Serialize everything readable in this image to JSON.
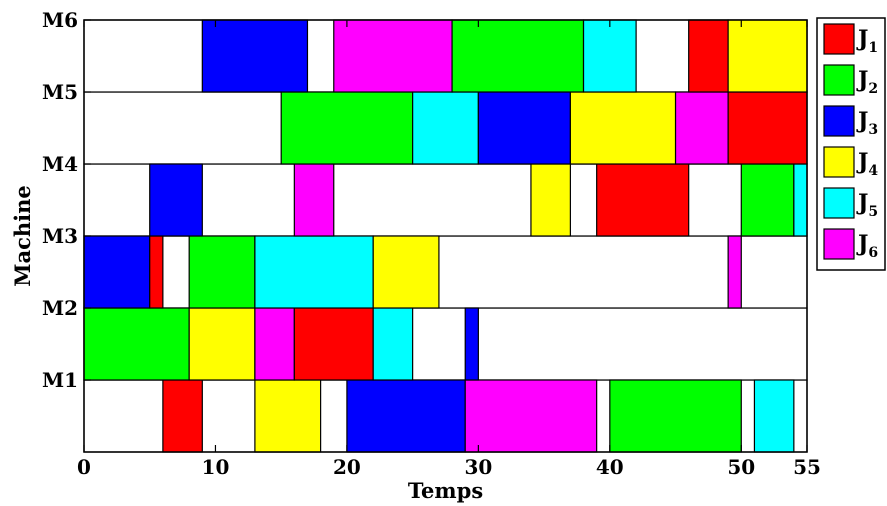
{
  "chart_data": {
    "type": "gantt",
    "xlabel": "Temps",
    "ylabel": "Machine",
    "xlim": [
      0,
      55
    ],
    "xticks": [
      0,
      10,
      20,
      30,
      40,
      50,
      55
    ],
    "machines": [
      "M1",
      "M2",
      "M3",
      "M4",
      "M5",
      "M6"
    ],
    "jobs": [
      {
        "id": "J1",
        "letter": "J",
        "sub": "1",
        "color": "#ff0000"
      },
      {
        "id": "J2",
        "letter": "J",
        "sub": "2",
        "color": "#00ff00"
      },
      {
        "id": "J3",
        "letter": "J",
        "sub": "3",
        "color": "#0000ff"
      },
      {
        "id": "J4",
        "letter": "J",
        "sub": "4",
        "color": "#ffff00"
      },
      {
        "id": "J5",
        "letter": "J",
        "sub": "5",
        "color": "#00ffff"
      },
      {
        "id": "J6",
        "letter": "J",
        "sub": "6",
        "color": "#ff00ff"
      }
    ],
    "tasks": [
      {
        "machine": "M1",
        "job": "J1",
        "start": 6,
        "end": 9
      },
      {
        "machine": "M1",
        "job": "J4",
        "start": 13,
        "end": 18
      },
      {
        "machine": "M1",
        "job": "J3",
        "start": 20,
        "end": 29
      },
      {
        "machine": "M1",
        "job": "J6",
        "start": 29,
        "end": 39
      },
      {
        "machine": "M1",
        "job": "J2",
        "start": 40,
        "end": 50
      },
      {
        "machine": "M1",
        "job": "J5",
        "start": 51,
        "end": 54
      },
      {
        "machine": "M2",
        "job": "J2",
        "start": 0,
        "end": 8
      },
      {
        "machine": "M2",
        "job": "J4",
        "start": 8,
        "end": 13
      },
      {
        "machine": "M2",
        "job": "J6",
        "start": 13,
        "end": 16
      },
      {
        "machine": "M2",
        "job": "J1",
        "start": 16,
        "end": 22
      },
      {
        "machine": "M2",
        "job": "J5",
        "start": 22,
        "end": 25
      },
      {
        "machine": "M2",
        "job": "J3",
        "start": 29,
        "end": 30
      },
      {
        "machine": "M3",
        "job": "J3",
        "start": 0,
        "end": 5
      },
      {
        "machine": "M3",
        "job": "J1",
        "start": 5,
        "end": 6
      },
      {
        "machine": "M3",
        "job": "J2",
        "start": 8,
        "end": 13
      },
      {
        "machine": "M3",
        "job": "J5",
        "start": 13,
        "end": 22
      },
      {
        "machine": "M3",
        "job": "J4",
        "start": 22,
        "end": 27
      },
      {
        "machine": "M3",
        "job": "J6",
        "start": 49,
        "end": 50
      },
      {
        "machine": "M4",
        "job": "J3",
        "start": 5,
        "end": 9
      },
      {
        "machine": "M4",
        "job": "J6",
        "start": 16,
        "end": 19
      },
      {
        "machine": "M4",
        "job": "J4",
        "start": 34,
        "end": 37
      },
      {
        "machine": "M4",
        "job": "J1",
        "start": 39,
        "end": 46
      },
      {
        "machine": "M4",
        "job": "J2",
        "start": 50,
        "end": 54
      },
      {
        "machine": "M4",
        "job": "J5",
        "start": 54,
        "end": 55
      },
      {
        "machine": "M5",
        "job": "J2",
        "start": 15,
        "end": 25
      },
      {
        "machine": "M5",
        "job": "J5",
        "start": 25,
        "end": 30
      },
      {
        "machine": "M5",
        "job": "J3",
        "start": 30,
        "end": 37
      },
      {
        "machine": "M5",
        "job": "J4",
        "start": 37,
        "end": 45
      },
      {
        "machine": "M5",
        "job": "J6",
        "start": 45,
        "end": 49
      },
      {
        "machine": "M5",
        "job": "J1",
        "start": 49,
        "end": 55
      },
      {
        "machine": "M6",
        "job": "J3",
        "start": 9,
        "end": 17
      },
      {
        "machine": "M6",
        "job": "J6",
        "start": 19,
        "end": 28
      },
      {
        "machine": "M6",
        "job": "J2",
        "start": 28,
        "end": 38
      },
      {
        "machine": "M6",
        "job": "J5",
        "start": 38,
        "end": 42
      },
      {
        "machine": "M6",
        "job": "J1",
        "start": 46,
        "end": 49
      },
      {
        "machine": "M6",
        "job": "J4",
        "start": 49,
        "end": 55
      }
    ]
  }
}
